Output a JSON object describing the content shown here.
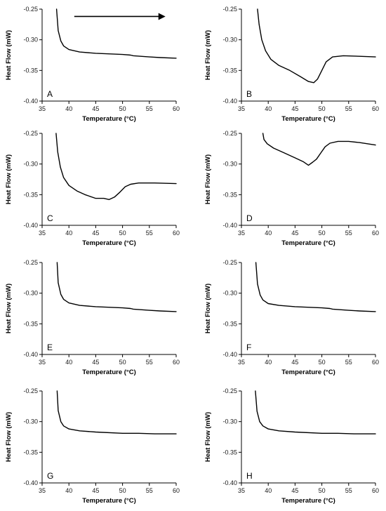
{
  "chart_data": [
    {
      "type": "line",
      "panel_label": "A",
      "xlabel": "Temperature (°C)",
      "ylabel": "Heat Flow (mW)",
      "xlim": [
        35,
        60
      ],
      "ylim": [
        -0.4,
        -0.25
      ],
      "x_ticks": [
        "35",
        "40",
        "45",
        "50",
        "55",
        "60"
      ],
      "y_ticks": [
        "-0.25",
        "-0.30",
        "-0.35",
        "-0.40"
      ],
      "arrow": {
        "x_start": 41,
        "x_end": 58,
        "y": -0.262
      },
      "series": [
        {
          "points": [
            [
              37.7,
              -0.25
            ],
            [
              38.0,
              -0.285
            ],
            [
              38.5,
              -0.302
            ],
            [
              39,
              -0.31
            ],
            [
              40,
              -0.316
            ],
            [
              42,
              -0.32
            ],
            [
              45,
              -0.322
            ],
            [
              50,
              -0.324
            ],
            [
              51.5,
              -0.325
            ],
            [
              52,
              -0.326
            ],
            [
              55,
              -0.328
            ],
            [
              57,
              -0.329
            ],
            [
              60,
              -0.33
            ]
          ]
        }
      ]
    },
    {
      "type": "line",
      "panel_label": "B",
      "xlabel": "Temperature (°C)",
      "ylabel": "Heat Flow (mW)",
      "xlim": [
        35,
        60
      ],
      "ylim": [
        -0.4,
        -0.25
      ],
      "x_ticks": [
        "35",
        "40",
        "45",
        "50",
        "55",
        "60"
      ],
      "y_ticks": [
        "-0.25",
        "-0.30",
        "-0.35",
        "-0.40"
      ],
      "series": [
        {
          "points": [
            [
              38.0,
              -0.25
            ],
            [
              38.3,
              -0.275
            ],
            [
              38.8,
              -0.3
            ],
            [
              39.5,
              -0.318
            ],
            [
              40.5,
              -0.332
            ],
            [
              42,
              -0.342
            ],
            [
              44,
              -0.35
            ],
            [
              46,
              -0.36
            ],
            [
              47.5,
              -0.368
            ],
            [
              48.5,
              -0.37
            ],
            [
              49.2,
              -0.364
            ],
            [
              50,
              -0.35
            ],
            [
              50.8,
              -0.336
            ],
            [
              52,
              -0.328
            ],
            [
              54,
              -0.326
            ],
            [
              57,
              -0.327
            ],
            [
              60,
              -0.328
            ]
          ]
        }
      ]
    },
    {
      "type": "line",
      "panel_label": "C",
      "xlabel": "Temperature (°C)",
      "ylabel": "Heat Flow (mW)",
      "xlim": [
        35,
        60
      ],
      "ylim": [
        -0.4,
        -0.25
      ],
      "x_ticks": [
        "35",
        "40",
        "45",
        "50",
        "55",
        "60"
      ],
      "y_ticks": [
        "-0.25",
        "-0.30",
        "-0.35",
        "-0.40"
      ],
      "series": [
        {
          "points": [
            [
              37.6,
              -0.25
            ],
            [
              37.9,
              -0.28
            ],
            [
              38.4,
              -0.305
            ],
            [
              39,
              -0.322
            ],
            [
              40,
              -0.335
            ],
            [
              41.5,
              -0.344
            ],
            [
              43,
              -0.35
            ],
            [
              45,
              -0.356
            ],
            [
              46.5,
              -0.356
            ],
            [
              47.5,
              -0.358
            ],
            [
              48.5,
              -0.354
            ],
            [
              49.5,
              -0.346
            ],
            [
              50.5,
              -0.337
            ],
            [
              51.5,
              -0.333
            ],
            [
              53,
              -0.331
            ],
            [
              56,
              -0.331
            ],
            [
              60,
              -0.332
            ]
          ]
        }
      ]
    },
    {
      "type": "line",
      "panel_label": "D",
      "xlabel": "Temperature (°C)",
      "ylabel": "Heat Flow (mW)",
      "xlim": [
        35,
        60
      ],
      "ylim": [
        -0.4,
        -0.25
      ],
      "x_ticks": [
        "35",
        "40",
        "45",
        "50",
        "55",
        "60"
      ],
      "y_ticks": [
        "-0.25",
        "-0.30",
        "-0.35",
        "-0.40"
      ],
      "series": [
        {
          "points": [
            [
              39.0,
              -0.25
            ],
            [
              39.2,
              -0.26
            ],
            [
              39.8,
              -0.267
            ],
            [
              41,
              -0.274
            ],
            [
              43,
              -0.282
            ],
            [
              45,
              -0.29
            ],
            [
              46.5,
              -0.296
            ],
            [
              47.5,
              -0.302
            ],
            [
              48.3,
              -0.297
            ],
            [
              49,
              -0.292
            ],
            [
              49.8,
              -0.282
            ],
            [
              50.6,
              -0.272
            ],
            [
              51.5,
              -0.266
            ],
            [
              53,
              -0.263
            ],
            [
              55,
              -0.263
            ],
            [
              57,
              -0.265
            ],
            [
              60,
              -0.269
            ]
          ]
        }
      ]
    },
    {
      "type": "line",
      "panel_label": "E",
      "xlabel": "Temperature (°C)",
      "ylabel": "Heat Flow (mW)",
      "xlim": [
        35,
        60
      ],
      "ylim": [
        -0.4,
        -0.25
      ],
      "x_ticks": [
        "35",
        "40",
        "45",
        "50",
        "55",
        "60"
      ],
      "y_ticks": [
        "-0.25",
        "-0.30",
        "-0.35",
        "-0.40"
      ],
      "series": [
        {
          "points": [
            [
              37.8,
              -0.25
            ],
            [
              38.0,
              -0.283
            ],
            [
              38.5,
              -0.302
            ],
            [
              39,
              -0.31
            ],
            [
              40,
              -0.316
            ],
            [
              42,
              -0.32
            ],
            [
              45,
              -0.322
            ],
            [
              50,
              -0.324
            ],
            [
              51.5,
              -0.325
            ],
            [
              52,
              -0.326
            ],
            [
              55,
              -0.328
            ],
            [
              57,
              -0.329
            ],
            [
              60,
              -0.33
            ]
          ]
        }
      ]
    },
    {
      "type": "line",
      "panel_label": "F",
      "xlabel": "Temperature (°C)",
      "ylabel": "Heat Flow (mW)",
      "xlim": [
        35,
        60
      ],
      "ylim": [
        -0.4,
        -0.25
      ],
      "x_ticks": [
        "35",
        "40",
        "45",
        "50",
        "55",
        "60"
      ],
      "y_ticks": [
        "-0.25",
        "-0.30",
        "-0.35",
        "-0.40"
      ],
      "series": [
        {
          "points": [
            [
              37.7,
              -0.25
            ],
            [
              38.0,
              -0.285
            ],
            [
              38.5,
              -0.303
            ],
            [
              39,
              -0.311
            ],
            [
              40,
              -0.317
            ],
            [
              42,
              -0.32
            ],
            [
              45,
              -0.322
            ],
            [
              50,
              -0.324
            ],
            [
              51.5,
              -0.325
            ],
            [
              52,
              -0.326
            ],
            [
              55,
              -0.328
            ],
            [
              57,
              -0.329
            ],
            [
              60,
              -0.33
            ]
          ]
        }
      ]
    },
    {
      "type": "line",
      "panel_label": "G",
      "xlabel": "Temperature (°C)",
      "ylabel": "Heat Flow (mW)",
      "xlim": [
        35,
        60
      ],
      "ylim": [
        -0.4,
        -0.25
      ],
      "x_ticks": [
        "35",
        "40",
        "45",
        "50",
        "55",
        "60"
      ],
      "y_ticks": [
        "-0.25",
        "-0.30",
        "-0.35",
        "-0.40"
      ],
      "series": [
        {
          "points": [
            [
              37.8,
              -0.25
            ],
            [
              38.0,
              -0.282
            ],
            [
              38.5,
              -0.3
            ],
            [
              39,
              -0.307
            ],
            [
              40,
              -0.312
            ],
            [
              42,
              -0.315
            ],
            [
              45,
              -0.317
            ],
            [
              50,
              -0.319
            ],
            [
              53,
              -0.319
            ],
            [
              56,
              -0.32
            ],
            [
              60,
              -0.32
            ]
          ]
        }
      ]
    },
    {
      "type": "line",
      "panel_label": "H",
      "xlabel": "Temperature (°C)",
      "ylabel": "Heat Flow (mW)",
      "xlim": [
        35,
        60
      ],
      "ylim": [
        -0.4,
        -0.25
      ],
      "x_ticks": [
        "35",
        "40",
        "45",
        "50",
        "55",
        "60"
      ],
      "y_ticks": [
        "-0.25",
        "-0.30",
        "-0.35",
        "-0.40"
      ],
      "series": [
        {
          "points": [
            [
              37.6,
              -0.25
            ],
            [
              37.9,
              -0.283
            ],
            [
              38.4,
              -0.3
            ],
            [
              39,
              -0.307
            ],
            [
              40,
              -0.312
            ],
            [
              42,
              -0.315
            ],
            [
              45,
              -0.317
            ],
            [
              50,
              -0.319
            ],
            [
              53,
              -0.319
            ],
            [
              56,
              -0.32
            ],
            [
              60,
              -0.32
            ]
          ]
        }
      ]
    }
  ]
}
